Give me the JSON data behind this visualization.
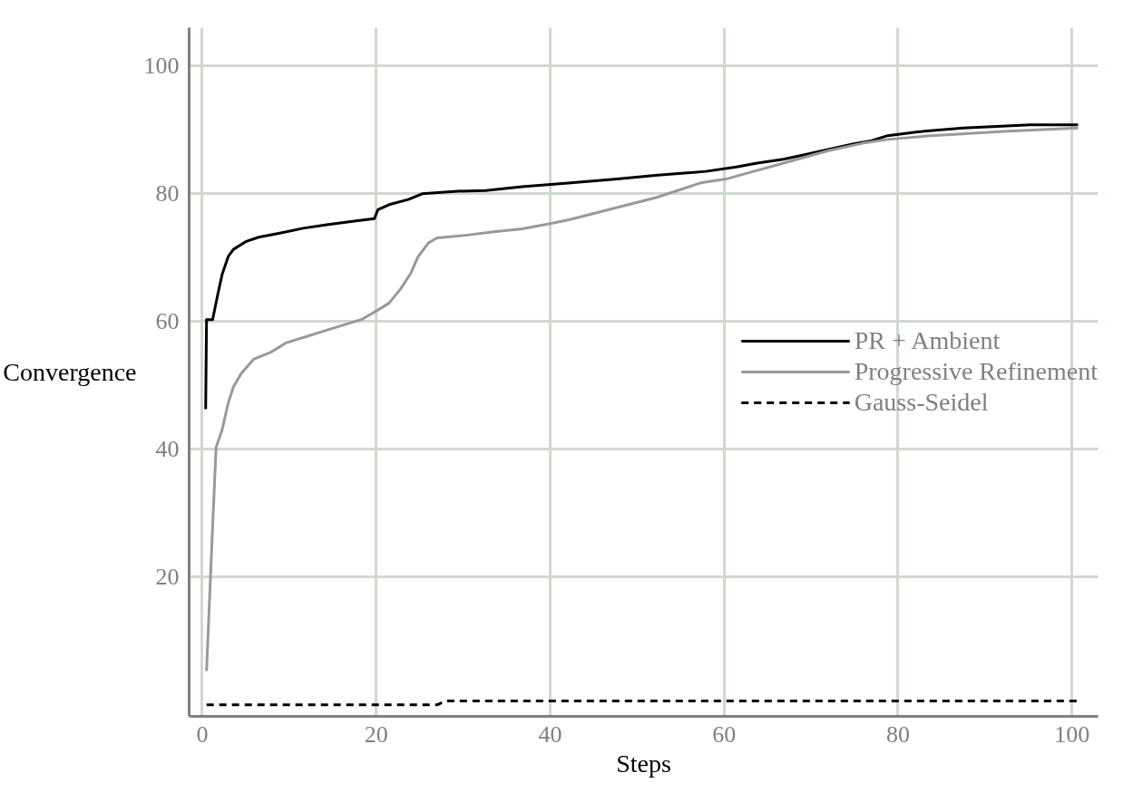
{
  "chart_data": {
    "type": "line",
    "xlabel": "Steps",
    "ylabel": "Convergence",
    "xlim": [
      -1.5,
      103
    ],
    "ylim": [
      -1.8,
      106
    ],
    "xticks": [
      0,
      20,
      40,
      60,
      80,
      100
    ],
    "yticks": [
      20,
      40,
      60,
      80,
      100
    ],
    "grid": true,
    "legend": "right",
    "marker": "none",
    "series": [
      {
        "name": "PR + Ambient",
        "color": "#000000",
        "line_style": "solid",
        "x": [
          0.4,
          0.5,
          1.2,
          1.8,
          2.3,
          3.0,
          3.6,
          5.0,
          6.5,
          8.8,
          11.6,
          14.5,
          17.9,
          19.8,
          20.2,
          21.5,
          23.7,
          25.3,
          29.4,
          32.6,
          36.8,
          42.4,
          47.7,
          52.4,
          57.9,
          61.4,
          63.8,
          66.8,
          68.9,
          70.9,
          72.9,
          74.9,
          77.0,
          78.8,
          82.3,
          87.5,
          95.2,
          100.7
        ],
        "values": [
          46.3,
          60.3,
          60.3,
          64.3,
          67.4,
          70.2,
          71.3,
          72.5,
          73.2,
          73.8,
          74.6,
          75.2,
          75.8,
          76.1,
          77.5,
          78.3,
          79.1,
          80.0,
          80.4,
          80.5,
          81.1,
          81.7,
          82.3,
          82.9,
          83.5,
          84.2,
          84.8,
          85.4,
          86.0,
          86.6,
          87.2,
          87.8,
          88.3,
          89.1,
          89.7,
          90.3,
          90.8,
          90.8
        ]
      },
      {
        "name": "Progressive Refinement",
        "color": "#999999",
        "line_style": "solid",
        "x": [
          0.5,
          0.8,
          1.2,
          1.6,
          2.3,
          3.0,
          3.6,
          4.5,
          5.9,
          7.9,
          9.7,
          12.1,
          15.4,
          18.3,
          20.2,
          21.5,
          22.8,
          24.0,
          24.8,
          26.0,
          27.0,
          30.3,
          33.3,
          36.8,
          39.9,
          42.4,
          48.4,
          52.2,
          57.3,
          60.2,
          63.4,
          67.4,
          71.9,
          75.9,
          78.8,
          83.8,
          92.7,
          100.7
        ],
        "values": [
          5.3,
          15.0,
          27.9,
          40.3,
          43.1,
          47.3,
          49.8,
          51.9,
          54.1,
          55.2,
          56.7,
          57.7,
          59.1,
          60.3,
          61.8,
          62.9,
          65.1,
          67.6,
          70.1,
          72.3,
          73.1,
          73.5,
          74.0,
          74.5,
          75.3,
          76.0,
          78.1,
          79.4,
          81.7,
          82.3,
          83.5,
          85.0,
          86.7,
          87.9,
          88.5,
          89.1,
          89.8,
          90.3
        ]
      },
      {
        "name": "Gauss-Seidel",
        "color": "#000000",
        "line_style": "dashed",
        "x": [
          0.5,
          27,
          28,
          100.7
        ],
        "values": [
          0,
          0,
          0.6,
          0.6
        ]
      }
    ]
  }
}
